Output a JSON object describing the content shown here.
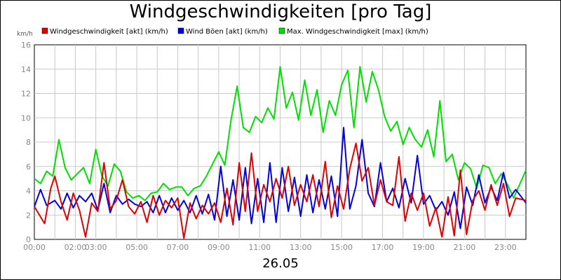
{
  "chart_data": {
    "type": "line",
    "title": "Windgeschwindigkeiten [pro Tag]",
    "date_label": "26.05",
    "y_unit": "km/h",
    "ylim": [
      0,
      16
    ],
    "y_ticks": [
      0,
      2,
      4,
      6,
      8,
      10,
      12,
      14,
      16
    ],
    "xlim": [
      0,
      24
    ],
    "x_ticks": [
      {
        "hour": 0,
        "label": "00:00"
      },
      {
        "hour": 2,
        "label": "02:00"
      },
      {
        "hour": 3,
        "label": "03:00"
      },
      {
        "hour": 5,
        "label": "05:00"
      },
      {
        "hour": 7,
        "label": "07:00"
      },
      {
        "hour": 9,
        "label": "09:00"
      },
      {
        "hour": 11,
        "label": "11:00"
      },
      {
        "hour": 13,
        "label": "13:00"
      },
      {
        "hour": 15,
        "label": "15:00"
      },
      {
        "hour": 17,
        "label": "17:00"
      },
      {
        "hour": 19,
        "label": "19:00"
      },
      {
        "hour": 21,
        "label": "21:00"
      },
      {
        "hour": 23,
        "label": "23:00"
      }
    ],
    "grid": true,
    "legend_position": "top",
    "series": [
      {
        "name": "Windgeschwindigkeit [akt] (km/h)",
        "color": "#e00000",
        "x": [
          0,
          0.5,
          0.8,
          1,
          1.3,
          1.6,
          1.9,
          2.2,
          2.5,
          2.8,
          3.1,
          3.4,
          3.7,
          4,
          4.3,
          4.6,
          4.9,
          5.2,
          5.5,
          5.8,
          6.1,
          6.4,
          6.7,
          7,
          7.3,
          7.6,
          7.9,
          8.2,
          8.5,
          8.8,
          9.1,
          9.4,
          9.7,
          10,
          10.3,
          10.6,
          10.9,
          11.2,
          11.5,
          11.8,
          12.1,
          12.4,
          12.7,
          13,
          13.3,
          13.6,
          13.9,
          14.2,
          14.5,
          14.8,
          15.1,
          15.4,
          15.7,
          16,
          16.3,
          16.6,
          16.9,
          17.2,
          17.5,
          17.8,
          18.1,
          18.4,
          18.7,
          19,
          19.3,
          19.6,
          19.9,
          20.2,
          20.5,
          20.8,
          21.1,
          21.4,
          21.7,
          22,
          22.3,
          22.6,
          22.9,
          23.2,
          23.5,
          24
        ],
        "y": [
          2.7,
          1.3,
          4.2,
          5.2,
          3.1,
          1.6,
          3.8,
          2.4,
          0.2,
          3.0,
          2.3,
          6.3,
          2.5,
          3.2,
          4.9,
          2.7,
          2.1,
          3.1,
          1.4,
          3.6,
          2.0,
          3.2,
          2.6,
          3.4,
          0.1,
          3.0,
          1.7,
          2.8,
          2.1,
          3.0,
          1.4,
          4.2,
          1.2,
          6.3,
          2.3,
          7.1,
          2.3,
          4.5,
          3.1,
          5.0,
          3.4,
          6.0,
          2.8,
          4.5,
          3.1,
          5.3,
          2.7,
          6.4,
          1.8,
          4.4,
          2.5,
          5.8,
          7.9,
          4.8,
          5.9,
          2.8,
          4.9,
          3.1,
          2.8,
          6.8,
          1.5,
          3.8,
          2.4,
          3.8,
          1.1,
          2.6,
          0.2,
          3.5,
          0.3,
          5.7,
          0.4,
          3.2,
          4.0,
          2.4,
          4.5,
          2.8,
          4.6,
          1.9,
          3.4,
          3.2
        ]
      },
      {
        "name": "Wind Böen [akt] (km/h)",
        "color": "#0000e0",
        "x": [
          0,
          0.3,
          0.6,
          1,
          1.3,
          1.6,
          1.9,
          2.2,
          2.5,
          2.8,
          3.1,
          3.4,
          3.7,
          4,
          4.3,
          4.6,
          4.9,
          5.2,
          5.5,
          5.8,
          6.1,
          6.4,
          6.7,
          7,
          7.3,
          7.6,
          7.9,
          8.2,
          8.5,
          8.8,
          9.1,
          9.4,
          9.7,
          10,
          10.3,
          10.6,
          10.9,
          11.2,
          11.5,
          11.8,
          12.1,
          12.4,
          12.7,
          13,
          13.3,
          13.6,
          13.9,
          14.2,
          14.5,
          14.8,
          15.1,
          15.4,
          15.7,
          16,
          16.3,
          16.6,
          16.9,
          17.2,
          17.5,
          17.8,
          18.1,
          18.4,
          18.7,
          19,
          19.3,
          19.6,
          19.9,
          20.2,
          20.5,
          20.8,
          21.1,
          21.4,
          21.7,
          22,
          22.3,
          22.6,
          22.9,
          23.2,
          23.5,
          24
        ],
        "y": [
          2.7,
          4.1,
          2.8,
          3.2,
          2.5,
          3.8,
          2.6,
          3.6,
          3.1,
          3.8,
          2.4,
          4.6,
          2.2,
          3.6,
          2.9,
          3.3,
          2.9,
          2.7,
          3.1,
          2.2,
          3.6,
          2.2,
          3.4,
          2.4,
          3.2,
          2.2,
          3.6,
          2.1,
          3.7,
          1.6,
          6.0,
          1.9,
          4.9,
          1.6,
          5.9,
          1.3,
          5.0,
          1.4,
          6.3,
          1.4,
          5.9,
          2.3,
          5.1,
          1.9,
          5.3,
          2.2,
          4.9,
          2.5,
          5.2,
          1.9,
          9.2,
          2.5,
          4.4,
          8.2,
          3.8,
          2.7,
          6.3,
          3.1,
          4.2,
          2.6,
          5.0,
          3.0,
          6.9,
          2.9,
          3.6,
          2.4,
          3.1,
          2.0,
          3.9,
          0.9,
          4.3,
          2.8,
          5.3,
          3.0,
          4.3,
          3.2,
          5.5,
          3.4,
          4.1,
          3.0
        ]
      },
      {
        "name": "Max. Windgeschwindigkeit [max] (km/h)",
        "color": "#00e000",
        "x": [
          0,
          0.3,
          0.6,
          0.9,
          1.2,
          1.5,
          1.8,
          2.1,
          2.4,
          2.7,
          3,
          3.3,
          3.6,
          3.9,
          4.2,
          4.5,
          4.8,
          5.1,
          5.4,
          5.7,
          6,
          6.3,
          6.6,
          6.9,
          7.2,
          7.5,
          7.8,
          8.1,
          8.4,
          8.7,
          9,
          9.3,
          9.6,
          9.9,
          10.2,
          10.5,
          10.8,
          11.1,
          11.4,
          11.7,
          12,
          12.3,
          12.6,
          12.9,
          13.2,
          13.5,
          13.8,
          14.1,
          14.4,
          14.7,
          15,
          15.3,
          15.6,
          15.9,
          16.2,
          16.5,
          16.8,
          17.1,
          17.4,
          17.7,
          18,
          18.3,
          18.6,
          18.9,
          19.2,
          19.5,
          19.8,
          20.1,
          20.4,
          20.7,
          21,
          21.3,
          21.6,
          21.9,
          22.2,
          22.5,
          22.8,
          23.1,
          23.4,
          24
        ],
        "y": [
          5.0,
          4.6,
          5.6,
          5.2,
          8.2,
          5.9,
          4.9,
          5.4,
          5.9,
          4.6,
          7.4,
          5.2,
          4.4,
          6.2,
          5.6,
          3.9,
          3.4,
          3.6,
          3.2,
          3.8,
          3.9,
          4.6,
          4.1,
          4.3,
          4.3,
          3.6,
          4.2,
          4.4,
          5.2,
          6.2,
          7.2,
          6.1,
          9.8,
          12.6,
          9.2,
          8.8,
          10.1,
          9.6,
          10.8,
          9.9,
          14.2,
          10.8,
          12.1,
          9.8,
          13.1,
          10.2,
          12.3,
          8.8,
          11.4,
          10.2,
          12.7,
          13.9,
          9.2,
          14.2,
          11.3,
          13.8,
          12.3,
          10.1,
          8.9,
          9.7,
          7.8,
          9.2,
          8.2,
          7.6,
          9.0,
          6.8,
          11.4,
          6.4,
          7.0,
          4.9,
          6.3,
          5.8,
          4.2,
          6.1,
          5.9,
          4.6,
          5.4,
          4.5,
          3.4,
          5.7
        ]
      }
    ]
  }
}
